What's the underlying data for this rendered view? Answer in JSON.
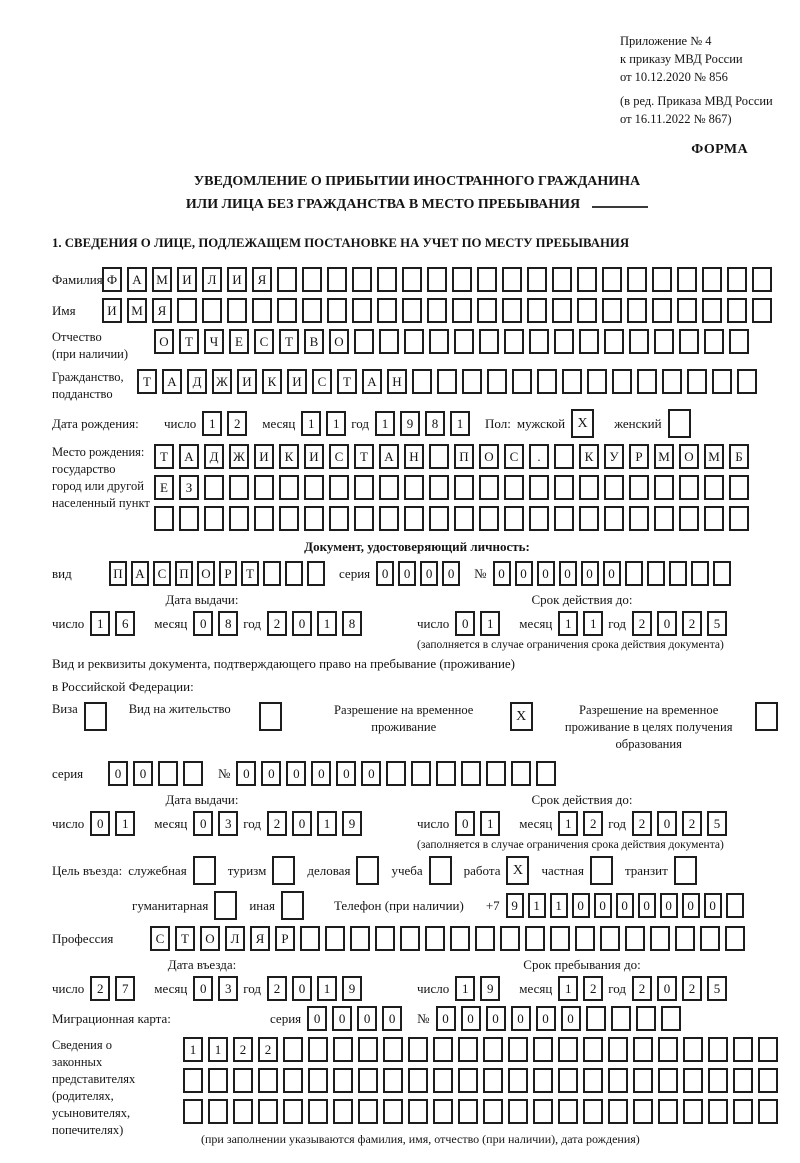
{
  "labels": {
    "day": "число",
    "month": "месяц",
    "year": "год",
    "series": "серия",
    "number": "№"
  },
  "header": {
    "lines": [
      "Приложение № 4",
      "к приказу МВД России",
      "от 10.12.2020 № 856",
      "(в ред. Приказа МВД России",
      "от 16.11.2022 № 867)"
    ],
    "form_label": "ФОРМА"
  },
  "title": {
    "line1": "УВЕДОМЛЕНИЕ О ПРИБЫТИИ ИНОСТРАННОГО ГРАЖДАНИНА",
    "line2": "ИЛИ ЛИЦА БЕЗ ГРАЖДАНСТВА В МЕСТО ПРЕБЫВАНИЯ"
  },
  "section1_heading": "1. СВЕДЕНИЯ О ЛИЦЕ, ПОДЛЕЖАЩЕМ ПОСТАНОВКЕ НА УЧЕТ ПО МЕСТУ ПРЕБЫВАНИЯ",
  "person": {
    "surname": {
      "label": "Фамилия",
      "boxes": {
        "value": "ФАМИЛИЯ",
        "cells": 27
      }
    },
    "name": {
      "label": "Имя",
      "boxes": {
        "value": "ИМЯ",
        "cells": 27
      }
    },
    "patronymic": {
      "label1": "Отчество",
      "label2": "(при наличии)",
      "boxes": {
        "value": "ОТЧЕСТВО",
        "cells": 24
      }
    },
    "citizenship": {
      "label1": "Гражданство,",
      "label2": "подданство",
      "boxes": {
        "value": "ТАДЖИКИСТАН",
        "cells": 25
      }
    },
    "birth_date": {
      "label": "Дата рождения:",
      "day": {
        "value": "12",
        "cells": 2
      },
      "month": {
        "value": "11",
        "cells": 2
      },
      "year": {
        "value": "1981",
        "cells": 4
      }
    },
    "sex": {
      "label": "Пол:",
      "male_label": "мужской",
      "male_box": {
        "value": "X",
        "cells": 1
      },
      "female_label": "женский",
      "female_box": {
        "value": "",
        "cells": 1
      }
    },
    "birth_place": {
      "label_lines": [
        "Место рождения:",
        "государство",
        "город или другой",
        "населенный пункт"
      ],
      "row1": {
        "value": "ТАДЖИКИСТАН ПОС. КУРМОМБ",
        "cells": 24
      },
      "row2": {
        "value": "ЕЗ",
        "cells": 24
      },
      "row3": {
        "value": "",
        "cells": 24
      }
    }
  },
  "identity_doc": {
    "heading": "Документ, удостоверяющий личность:",
    "type_label": "вид",
    "type": {
      "value": "ПАСПОРТ",
      "cells": 10
    },
    "series": {
      "value": "0000",
      "cells": 4
    },
    "number": {
      "value": "000000",
      "cells": 11
    },
    "issue_heading": "Дата выдачи:",
    "issue_day": {
      "value": "16",
      "cells": 2
    },
    "issue_month": {
      "value": "08",
      "cells": 2
    },
    "issue_year": {
      "value": "2018",
      "cells": 4
    },
    "valid_heading": "Срок действия до:",
    "valid_day": {
      "value": "01",
      "cells": 2
    },
    "valid_month": {
      "value": "11",
      "cells": 2
    },
    "valid_year": {
      "value": "2025",
      "cells": 4
    },
    "valid_note": "(заполняется в случае ограничения срока действия документа)"
  },
  "residence_doc": {
    "intro1": "Вид и реквизиты документа, подтверждающего право на пребывание (проживание)",
    "intro2": "в Российской Федерации:",
    "options": [
      {
        "label": "Виза",
        "box": {
          "value": "",
          "cells": 1
        }
      },
      {
        "label": "Вид на жительство",
        "box": {
          "value": "",
          "cells": 1
        }
      },
      {
        "label": "Разрешение на временное проживание",
        "box": {
          "value": "X",
          "cells": 1
        }
      },
      {
        "label": "Разрешение на временное проживание в целях получения образования",
        "box": {
          "value": "",
          "cells": 1
        }
      }
    ],
    "series": {
      "value": "00",
      "cells": 4
    },
    "number": {
      "value": "000000",
      "cells": 13
    },
    "issue_heading": "Дата выдачи:",
    "issue_day": {
      "value": "01",
      "cells": 2
    },
    "issue_month": {
      "value": "03",
      "cells": 2
    },
    "issue_year": {
      "value": "2019",
      "cells": 4
    },
    "valid_heading": "Срок действия до:",
    "valid_day": {
      "value": "01",
      "cells": 2
    },
    "valid_month": {
      "value": "12",
      "cells": 2
    },
    "valid_year": {
      "value": "2025",
      "cells": 4
    },
    "valid_note": "(заполняется в случае ограничения срока действия документа)"
  },
  "visit": {
    "purpose_label": "Цель въезда:",
    "purposes": [
      {
        "label": "служебная",
        "box": {
          "value": "",
          "cells": 1
        }
      },
      {
        "label": "туризм",
        "box": {
          "value": "",
          "cells": 1
        }
      },
      {
        "label": "деловая",
        "box": {
          "value": "",
          "cells": 1
        }
      },
      {
        "label": "учеба",
        "box": {
          "value": "",
          "cells": 1
        }
      },
      {
        "label": "работа",
        "box": {
          "value": "X",
          "cells": 1
        }
      },
      {
        "label": "частная",
        "box": {
          "value": "",
          "cells": 1
        }
      },
      {
        "label": "транзит",
        "box": {
          "value": "",
          "cells": 1
        }
      },
      {
        "label": "гуманитарная",
        "box": {
          "value": "",
          "cells": 1
        }
      },
      {
        "label": "иная",
        "box": {
          "value": "",
          "cells": 1
        }
      }
    ],
    "phone_label": "Телефон (при наличии)",
    "phone_prefix": "+7",
    "phone": {
      "value": "9110000000",
      "cells": 11
    },
    "profession_label": "Профессия",
    "profession": {
      "value": "СТОЛЯР",
      "cells": 24
    },
    "entry_heading": "Дата въезда:",
    "entry_day": {
      "value": "27",
      "cells": 2
    },
    "entry_month": {
      "value": "03",
      "cells": 2
    },
    "entry_year": {
      "value": "2019",
      "cells": 4
    },
    "stay_heading": "Срок пребывания до:",
    "stay_day": {
      "value": "19",
      "cells": 2
    },
    "stay_month": {
      "value": "12",
      "cells": 2
    },
    "stay_year": {
      "value": "2025",
      "cells": 4
    }
  },
  "migration_card": {
    "label": "Миграционная карта:",
    "series": {
      "value": "0000",
      "cells": 4
    },
    "number": {
      "value": "000000",
      "cells": 10
    }
  },
  "representatives": {
    "label_lines": [
      "Сведения о",
      "законных",
      "представителях",
      "(родителях,",
      "усыновителях,",
      "попечителях)"
    ],
    "row1": {
      "value": "1122",
      "cells": 24
    },
    "row2": {
      "value": "",
      "cells": 24
    },
    "row3": {
      "value": "",
      "cells": 24
    },
    "note": "(при заполнении указываются фамилия, имя, отчество (при наличии), дата рождения)"
  }
}
